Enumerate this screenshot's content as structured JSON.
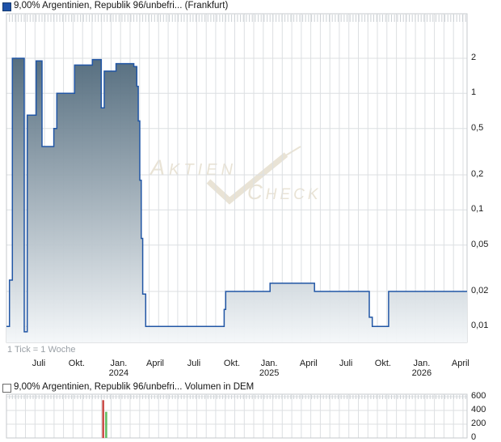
{
  "header": {
    "title": "9,00% Argentinien, Republik 96/unbefri... (Frankfurt)"
  },
  "volume_header": {
    "title": "9,00% Argentinien, Republik 96/unbefri... Volumen in DEM"
  },
  "watermark": {
    "line1": "AKTIEN",
    "line2": "CHECK"
  },
  "colors": {
    "accent_blue": "#2156a5",
    "legend_square_price": "#1e52a8",
    "grid": "#dcdfe2",
    "tick": "#ccd1d5",
    "border": "#c6cacd",
    "fill_top": "#50697b",
    "fill_bottom": "#f4f7f9",
    "watermark": "#e9e3d5",
    "volume_down": "#cb4f4b",
    "volume_up": "#63bd63",
    "note_text": "#9aa0a6"
  },
  "chart_data": [
    {
      "type": "area",
      "title": "9,00% Argentinien, Republik 96/unbefri... (Frankfurt)",
      "note": "1 Tick = 1 Woche",
      "y_scale": "log",
      "ylim": [
        0.0073,
        4.8
      ],
      "x_unit": "weeks_from_chart_start",
      "grid": true,
      "legend_position": "top-left",
      "y_ticks": [
        {
          "v": 2,
          "label": "2"
        },
        {
          "v": 1,
          "label": "1"
        },
        {
          "v": 0.5,
          "label": "0,5"
        },
        {
          "v": 0.2,
          "label": "0,2"
        },
        {
          "v": 0.1,
          "label": "0,1"
        },
        {
          "v": 0.05,
          "label": "0,05"
        },
        {
          "v": 0.02,
          "label": "0,02"
        },
        {
          "v": 0.01,
          "label": "0,01"
        }
      ],
      "x_ticks": [
        {
          "week": 10.9,
          "label": "Juli"
        },
        {
          "week": 23.7,
          "label": "Okt."
        },
        {
          "week": 37.9,
          "label": "Jan.",
          "sub": "2024"
        },
        {
          "week": 50.2,
          "label": "April"
        },
        {
          "week": 63.3,
          "label": "Juli"
        },
        {
          "week": 76.1,
          "label": "Okt."
        },
        {
          "week": 88.7,
          "label": "Jan.",
          "sub": "2025"
        },
        {
          "week": 102,
          "label": "April"
        },
        {
          "week": 114.6,
          "label": "Juli"
        },
        {
          "week": 127.1,
          "label": "Okt."
        },
        {
          "week": 140.2,
          "label": "Jan.",
          "sub": "2026"
        },
        {
          "week": 153.3,
          "label": "April"
        }
      ],
      "series": [
        {
          "name": "9,00% Argentinien, Republik 96/unbefri...",
          "step": "after",
          "points": [
            [
              0,
              0.01
            ],
            [
              1,
              0.025
            ],
            [
              2,
              2.0
            ],
            [
              6,
              0.009
            ],
            [
              7,
              0.65
            ],
            [
              10,
              1.9
            ],
            [
              12,
              0.35
            ],
            [
              16,
              0.5
            ],
            [
              17,
              1.0
            ],
            [
              23,
              1.75
            ],
            [
              29,
              1.95
            ],
            [
              32,
              0.75
            ],
            [
              33,
              1.55
            ],
            [
              37,
              1.8
            ],
            [
              43,
              1.7
            ],
            [
              44,
              1.15
            ],
            [
              44.5,
              0.58
            ],
            [
              45,
              0.18
            ],
            [
              45.5,
              0.057
            ],
            [
              46,
              0.019
            ],
            [
              47,
              0.01
            ],
            [
              73.5,
              0.014
            ],
            [
              74,
              0.02
            ],
            [
              89,
              0.0235
            ],
            [
              104,
              0.02
            ],
            [
              122.5,
              0.012
            ],
            [
              123.5,
              0.01
            ],
            [
              129,
              0.02
            ],
            [
              155.5,
              0.02
            ]
          ]
        }
      ]
    },
    {
      "type": "bar",
      "title": "9,00% Argentinien, Republik 96/unbefri... Volumen in DEM",
      "ylim": [
        0,
        600
      ],
      "grid": true,
      "y_ticks": [
        {
          "v": 600,
          "label": "600"
        },
        {
          "v": 400,
          "label": "400"
        },
        {
          "v": 200,
          "label": "200"
        },
        {
          "v": 0,
          "label": "0"
        }
      ],
      "bars": [
        {
          "week": 32,
          "value": 550,
          "color": "#cb4f4b"
        },
        {
          "week": 33,
          "value": 380,
          "color": "#63bd63"
        }
      ]
    }
  ]
}
